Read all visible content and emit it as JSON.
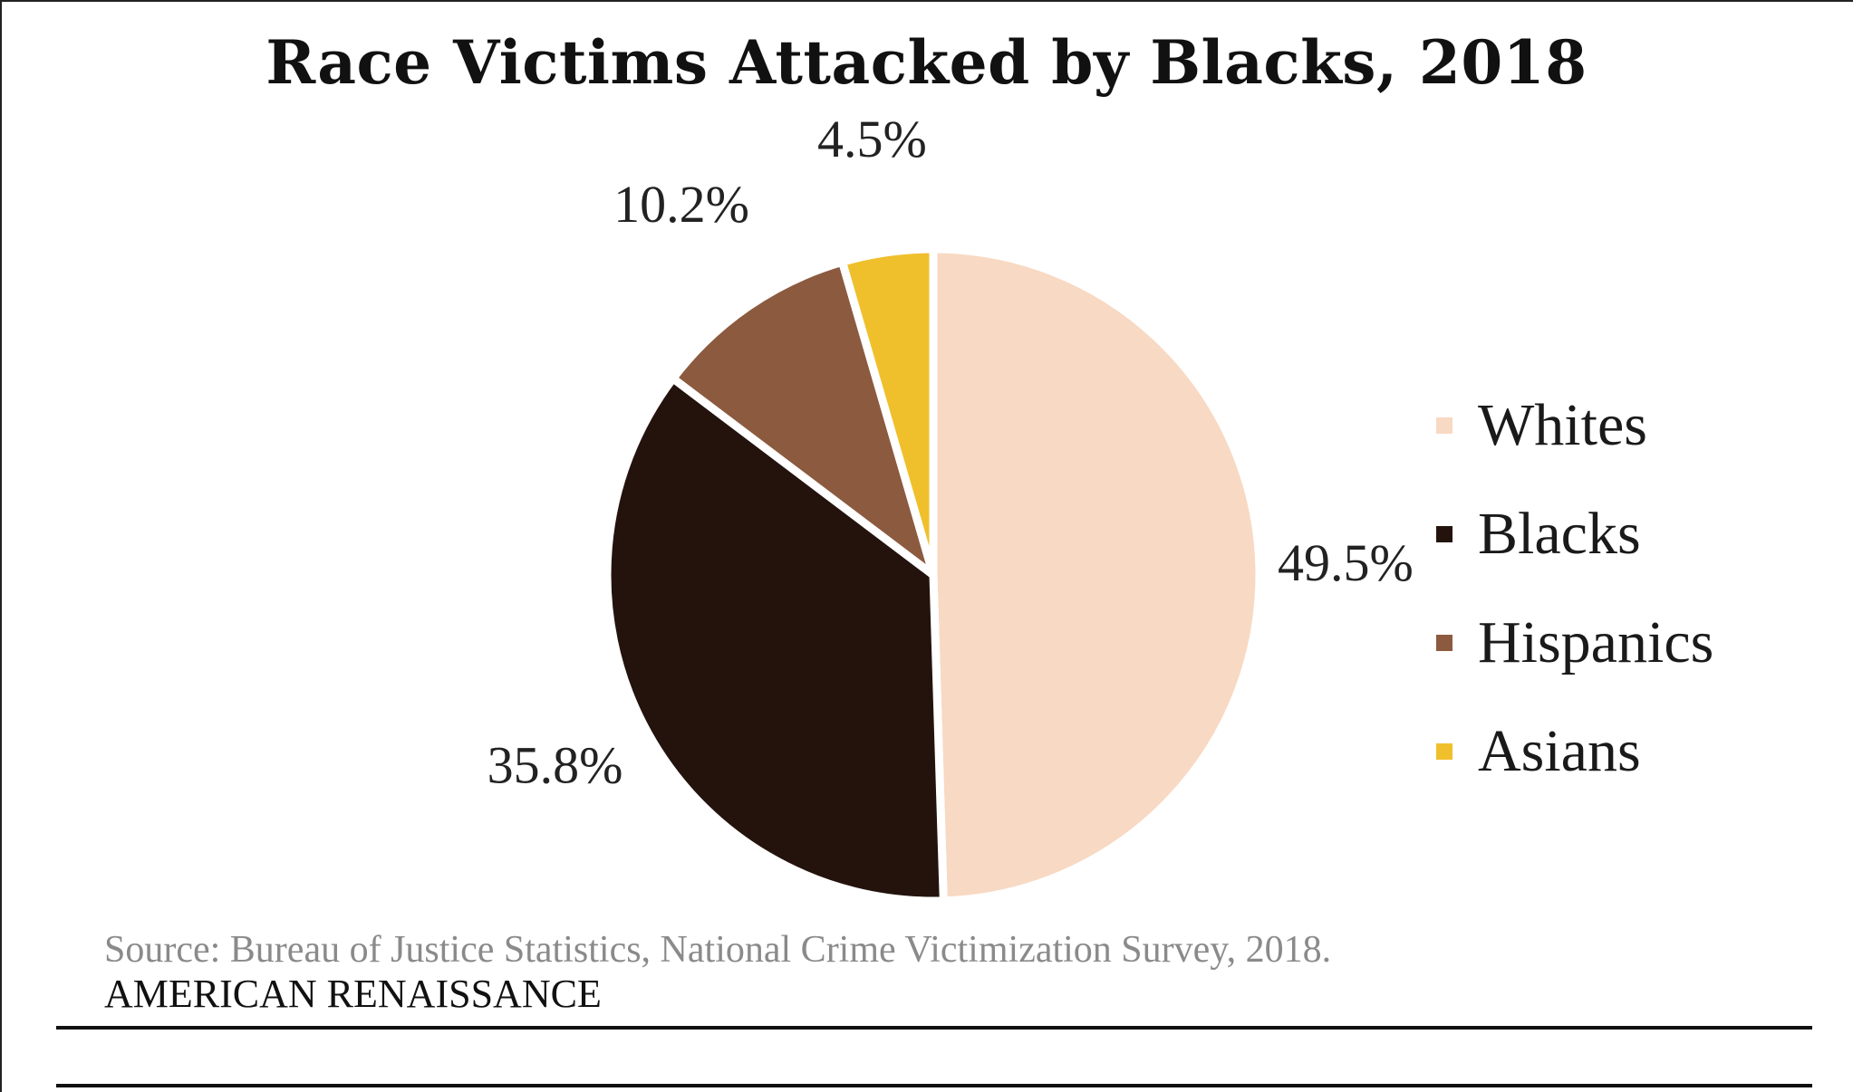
{
  "chart_data": {
    "type": "pie",
    "title": "Race Victims Attacked by Blacks, 2018",
    "categories": [
      "Whites",
      "Blacks",
      "Hispanics",
      "Asians"
    ],
    "values": [
      49.5,
      35.8,
      10.2,
      4.5
    ],
    "value_labels": [
      "49.5%",
      "35.8%",
      "10.2%",
      "4.5%"
    ],
    "colors": [
      "#f8d9c3",
      "#24130d",
      "#8c5a3f",
      "#f0bf2c"
    ],
    "legend_position": "right",
    "start_angle": "top",
    "direction": "clockwise"
  },
  "footer": {
    "source": "Source: Bureau of Justice Statistics, National Crime Victimization Survey, 2018.",
    "brand": "AMERICAN RENAISSANCE"
  }
}
